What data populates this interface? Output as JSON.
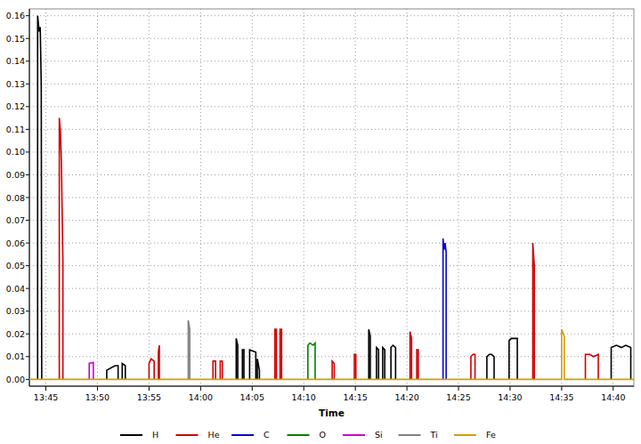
{
  "chart_data": {
    "type": "line",
    "x_label": "Time",
    "xlim": [
      823.4,
      882.0
    ],
    "ylim": [
      -0.003,
      0.163
    ],
    "xticks": [
      {
        "value": 825,
        "label": "13:45"
      },
      {
        "value": 830,
        "label": "13:50"
      },
      {
        "value": 835,
        "label": "13:55"
      },
      {
        "value": 840,
        "label": "14:00"
      },
      {
        "value": 845,
        "label": "14:05"
      },
      {
        "value": 850,
        "label": "14:10"
      },
      {
        "value": 855,
        "label": "14:15"
      },
      {
        "value": 860,
        "label": "14:20"
      },
      {
        "value": 865,
        "label": "14:25"
      },
      {
        "value": 870,
        "label": "14:30"
      },
      {
        "value": 875,
        "label": "14:35"
      },
      {
        "value": 880,
        "label": "14:40"
      }
    ],
    "yticks": [
      {
        "value": 0,
        "label": "0.00"
      },
      {
        "value": 0.01,
        "label": "0.01"
      },
      {
        "value": 0.02,
        "label": "0.02"
      },
      {
        "value": 0.03,
        "label": "0.03"
      },
      {
        "value": 0.04,
        "label": "0.04"
      },
      {
        "value": 0.05,
        "label": "0.05"
      },
      {
        "value": 0.06,
        "label": "0.06"
      },
      {
        "value": 0.07,
        "label": "0.07"
      },
      {
        "value": 0.08,
        "label": "0.08"
      },
      {
        "value": 0.09,
        "label": "0.09"
      },
      {
        "value": 0.1,
        "label": "0.10"
      },
      {
        "value": 0.11,
        "label": "0.11"
      },
      {
        "value": 0.12,
        "label": "0.12"
      },
      {
        "value": 0.13,
        "label": "0.13"
      },
      {
        "value": 0.14,
        "label": "0.14"
      },
      {
        "value": 0.15,
        "label": "0.15"
      },
      {
        "value": 0.16,
        "label": "0.16"
      }
    ],
    "grid": true,
    "legend": "bottom",
    "series": [
      {
        "name": "H",
        "color": "#000000",
        "x": [
          824.2,
          824.2,
          824.35,
          824.45,
          824.55,
          824.6,
          827,
          830.9,
          830.9,
          831.3,
          831.7,
          832.0,
          832.0,
          832.2,
          832.4,
          832.4,
          832.7,
          832.7,
          838,
          843.45,
          843.45,
          843.6,
          843.6,
          843.8,
          844.05,
          844.05,
          844.2,
          844.2,
          844.5,
          844.75,
          844.75,
          845.35,
          845.35,
          845.45,
          845.5,
          845.5,
          845.7,
          845.7,
          850,
          856.3,
          856.3,
          856.45,
          856.45,
          856.7,
          857.05,
          857.05,
          857.25,
          857.25,
          857.4,
          857.65,
          857.65,
          857.85,
          857.85,
          858.1,
          858.45,
          858.45,
          858.65,
          858.9,
          858.9,
          863,
          867.75,
          867.75,
          868.0,
          868.2,
          868.45,
          868.45,
          869,
          869.9,
          869.9,
          870.1,
          870.4,
          870.7,
          870.7,
          875,
          879.8,
          879.8,
          880.3,
          880.8,
          881.2,
          881.7,
          881.7
        ],
        "values": [
          0,
          0.16,
          0.153,
          0.155,
          0.13,
          0,
          null,
          0,
          0.004,
          0.005,
          0.006,
          0.006,
          0,
          null,
          0,
          0.007,
          0.006,
          0,
          null,
          0,
          0.018,
          0.015,
          0,
          null,
          0,
          0.013,
          0.013,
          0,
          null,
          0,
          0.013,
          0.012,
          0,
          null,
          0,
          0.009,
          0.004,
          0,
          null,
          0,
          0.022,
          0.019,
          0,
          null,
          0,
          0.014,
          0.013,
          0,
          null,
          0,
          0.014,
          0.013,
          0,
          null,
          0,
          0.014,
          0.015,
          0.014,
          0,
          null,
          0,
          0.01,
          0.011,
          0.011,
          0.01,
          0,
          null,
          0,
          0.017,
          0.018,
          0.018,
          0.018,
          0,
          null,
          0,
          0.014,
          0.015,
          0.014,
          0.015,
          0.014,
          0
        ]
      },
      {
        "name": "He",
        "color": "#d00000",
        "x": [
          826.3,
          826.3,
          826.4,
          826.5,
          826.65,
          826.65,
          830,
          835.0,
          835.0,
          835.2,
          835.5,
          835.5,
          835.7,
          835.9,
          835.9,
          836.0,
          836.0,
          838,
          841.2,
          841.2,
          841.45,
          841.45,
          841.7,
          841.9,
          841.9,
          842.1,
          842.1,
          845,
          847.2,
          847.2,
          847.35,
          847.35,
          847.5,
          847.7,
          847.7,
          847.85,
          847.85,
          850,
          852.75,
          852.75,
          852.95,
          852.95,
          854,
          854.9,
          854.9,
          855.05,
          855.05,
          858,
          860.3,
          860.3,
          860.45,
          860.45,
          860.7,
          860.95,
          860.95,
          861.1,
          861.1,
          864,
          866.2,
          866.2,
          866.4,
          866.6,
          866.6,
          870,
          872.2,
          872.2,
          872.35,
          872.35,
          875,
          877.3,
          877.3,
          877.7,
          878.1,
          878.55,
          878.55
        ],
        "values": [
          0,
          0.115,
          0.11,
          0.096,
          0.052,
          0,
          null,
          0,
          0.007,
          0.009,
          0.008,
          0,
          null,
          0,
          0.012,
          0.015,
          0,
          null,
          0,
          0.008,
          0.008,
          0,
          null,
          0,
          0.008,
          0.008,
          0,
          null,
          0,
          0.022,
          0.022,
          0,
          null,
          0,
          0.022,
          0.022,
          0,
          null,
          0,
          0.008,
          0.007,
          0,
          null,
          0,
          0.011,
          0.011,
          0,
          null,
          0,
          0.021,
          0.018,
          0,
          null,
          0,
          0.013,
          0.013,
          0,
          null,
          0,
          0.01,
          0.011,
          0.011,
          0,
          null,
          0,
          0.06,
          0.05,
          0,
          null,
          0,
          0.011,
          0.011,
          0.01,
          0.011,
          0
        ]
      },
      {
        "name": "C",
        "color": "#0000e0",
        "x": [
          863.5,
          863.5,
          863.6,
          863.7,
          863.8,
          863.8
        ],
        "values": [
          0,
          0.062,
          0.057,
          0.06,
          0.056,
          0
        ]
      },
      {
        "name": "O",
        "color": "#008000",
        "x": [
          850.4,
          850.4,
          850.6,
          850.9,
          851.1,
          851.1
        ],
        "values": [
          0,
          0.015,
          0.016,
          0.015,
          0.016,
          0
        ]
      },
      {
        "name": "Si",
        "color": "#d000d0",
        "x": [
          829.2,
          829.2,
          829.6,
          829.6
        ],
        "values": [
          0,
          0.007,
          0.0075,
          0
        ]
      },
      {
        "name": "Ti",
        "color": "#808080",
        "x": [
          838.8,
          838.8,
          838.95,
          838.95
        ],
        "values": [
          0,
          0.026,
          0.022,
          0
        ]
      },
      {
        "name": "Fe",
        "color": "#d4a000",
        "x": [
          823.4,
          875.0,
          875.0,
          875.25,
          875.25,
          882.0
        ],
        "values": [
          0,
          0,
          0.022,
          0.019,
          0,
          0
        ]
      }
    ]
  }
}
